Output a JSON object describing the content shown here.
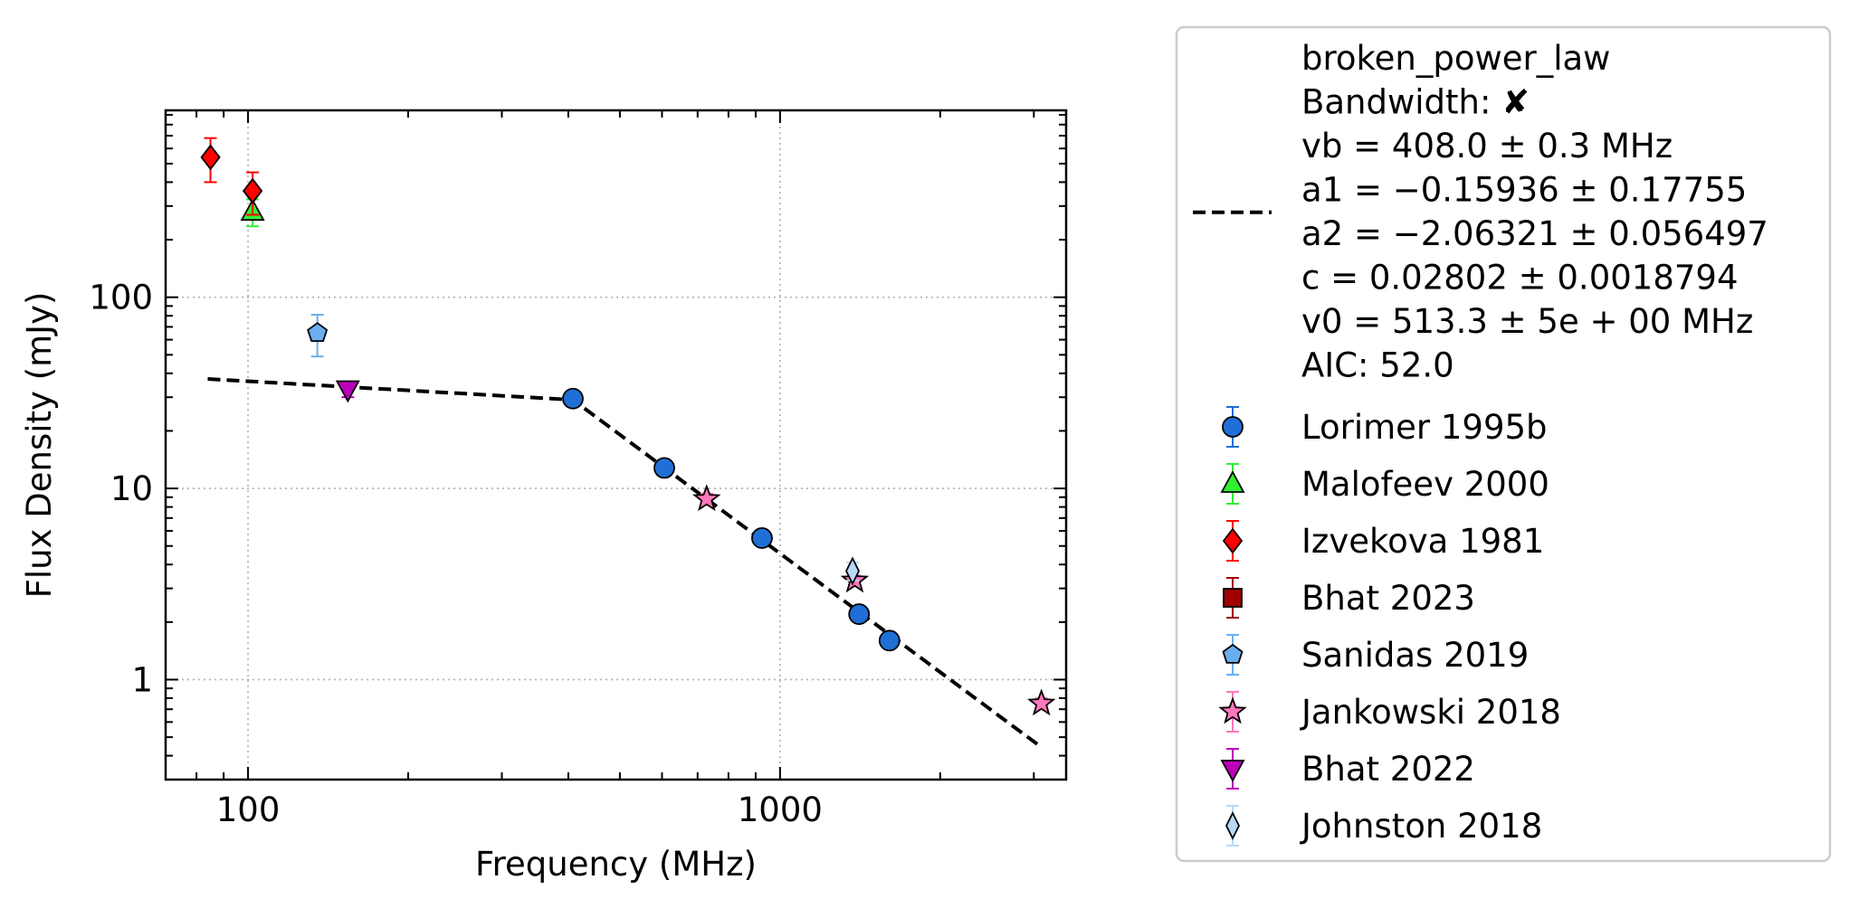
{
  "chart_data": {
    "type": "scatter",
    "x_scale": "log",
    "y_scale": "log",
    "xlim": [
      70,
      3450
    ],
    "ylim": [
      0.3,
      950
    ],
    "xlabel": "Frequency (MHz)",
    "ylabel": "Flux Density (mJy)",
    "x_ticks": [
      100,
      1000
    ],
    "x_tick_labels": [
      "100",
      "1000"
    ],
    "y_ticks": [
      1,
      10,
      100
    ],
    "y_tick_labels": [
      "1",
      "10",
      "100"
    ],
    "grid": true,
    "legend_position": "right (outside plot)",
    "fit": {
      "name": "broken_power_law",
      "lines": [
        "broken_power_law",
        "Bandwidth: ✘",
        "vb = 408.0 ± 0.3 MHz",
        "a1 = −0.15936 ± 0.17755",
        "a2 = −2.06321 ± 0.056497",
        "c = 0.02802 ± 0.0018794",
        "v0 = 513.3 ± 5e + 00 MHz",
        "AIC: 52.0"
      ],
      "vb": 408.0,
      "a1": -0.15936,
      "a2": -2.06321,
      "c": 0.02802,
      "v0": 513.3,
      "x_range": [
        84,
        3100
      ],
      "color": "#000000"
    },
    "series": [
      {
        "name": "Lorimer 1995b",
        "marker": "circle",
        "color": "#1f6fd6",
        "ecolor": "#1f6fd6",
        "points": [
          {
            "x": 408,
            "y": 29.5,
            "err": 0
          },
          {
            "x": 606,
            "y": 12.8,
            "err": 0
          },
          {
            "x": 925,
            "y": 5.5,
            "err": 0
          },
          {
            "x": 1408,
            "y": 2.2,
            "err": 0
          },
          {
            "x": 1606,
            "y": 1.6,
            "err": 0
          }
        ]
      },
      {
        "name": "Malofeev 2000",
        "marker": "triangle-up",
        "color": "#33ee33",
        "ecolor": "#33ee33",
        "points": [
          {
            "x": 102,
            "y": 280,
            "err": 45
          }
        ]
      },
      {
        "name": "Izvekova 1981",
        "marker": "diamond",
        "color": "#ff0000",
        "ecolor": "#ff0000",
        "points": [
          {
            "x": 85,
            "y": 540,
            "err": 140
          },
          {
            "x": 102,
            "y": 360,
            "err": 90
          }
        ]
      },
      {
        "name": "Bhat 2023",
        "marker": "square",
        "color": "#a00000",
        "ecolor": "#a00000",
        "points": []
      },
      {
        "name": "Sanidas 2019",
        "marker": "pentagon",
        "color": "#6aaeee",
        "ecolor": "#6aaeee",
        "points": [
          {
            "x": 135,
            "y": 65,
            "err": 16
          }
        ]
      },
      {
        "name": "Jankowski 2018",
        "marker": "star",
        "color": "#ff77bb",
        "ecolor": "#ff77bb",
        "points": [
          {
            "x": 728,
            "y": 8.8,
            "err": 0.6
          },
          {
            "x": 1382,
            "y": 3.3,
            "err": 0.2
          },
          {
            "x": 3100,
            "y": 0.75,
            "err": 0.05
          }
        ]
      },
      {
        "name": "Bhat 2022",
        "marker": "triangle-down",
        "color": "#bb00bb",
        "ecolor": "#bb00bb",
        "points": [
          {
            "x": 154,
            "y": 33,
            "err": 3
          }
        ]
      },
      {
        "name": "Johnston 2018",
        "marker": "thin-diamond",
        "color": "#b8d8f6",
        "ecolor": "#b8d8f6",
        "points": [
          {
            "x": 1369,
            "y": 3.7,
            "err": 0.4
          }
        ]
      }
    ]
  }
}
